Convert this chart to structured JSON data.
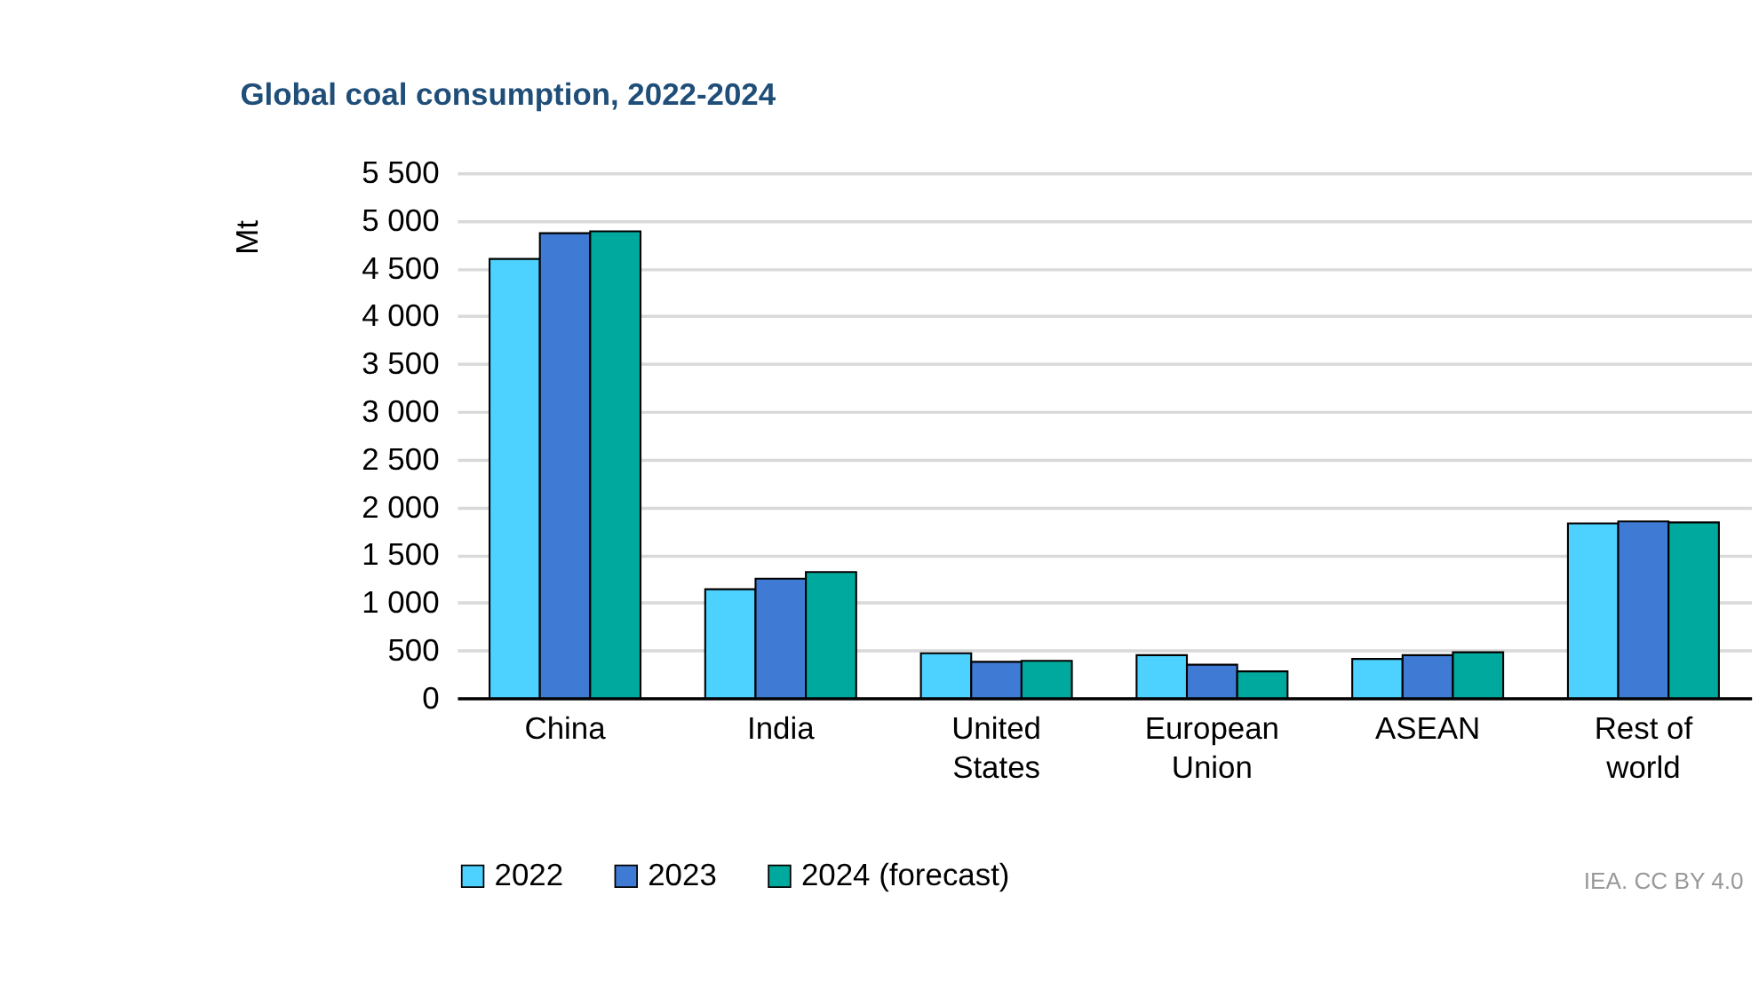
{
  "chart_data": {
    "type": "bar",
    "title": "Global coal consumption, 2022-2024",
    "ylabel": "Mt",
    "categories": [
      "China",
      "India",
      "United States",
      "European Union",
      "ASEAN",
      "Rest of world"
    ],
    "series": [
      {
        "name": "2022",
        "color": "#4dd2ff",
        "values": [
          4600,
          1140,
          470,
          450,
          410,
          1830
        ]
      },
      {
        "name": "2023",
        "color": "#3f7bd4",
        "values": [
          4870,
          1250,
          380,
          350,
          450,
          1850
        ]
      },
      {
        "name": "2024 (forecast)",
        "color": "#00a99d",
        "values": [
          4890,
          1320,
          390,
          280,
          480,
          1840
        ]
      }
    ],
    "ylim": [
      0,
      5500
    ],
    "yticks": [
      0,
      500,
      {
        "value": 1000,
        "label": "1 000"
      },
      {
        "value": 1500,
        "label": "1 500"
      },
      {
        "value": 2000,
        "label": "2 000"
      },
      {
        "value": 2500,
        "label": "2 500"
      },
      {
        "value": 3000,
        "label": "3 000"
      },
      {
        "value": 3500,
        "label": "3 500"
      },
      {
        "value": 4000,
        "label": "4 000"
      },
      {
        "value": 4500,
        "label": "4 500"
      },
      {
        "value": 5000,
        "label": "5 000"
      },
      {
        "value": 5500,
        "label": "5 500"
      }
    ],
    "grid": "y",
    "legend": "bottom",
    "annotations": [
      "IEA. CC BY 4.0"
    ]
  }
}
